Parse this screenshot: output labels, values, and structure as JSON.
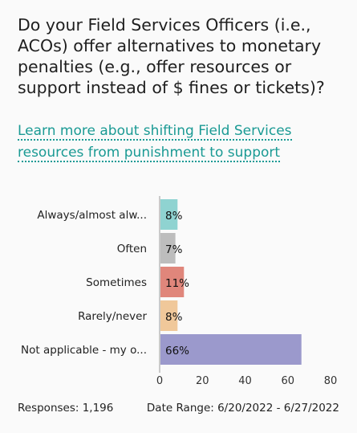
{
  "question": "Do your Field Services Officers (i.e., ACOs) offer alternatives to monetary penalties (e.g., offer resources or support instead of $ fines or tickets)?",
  "link_text": "Learn more about shifting Field Services resources from punishment to support",
  "footer": {
    "responses": "Responses: 1,196",
    "date_range": "Date Range: 6/20/2022 - 6/27/2022"
  },
  "chart_data": {
    "type": "bar",
    "orientation": "horizontal",
    "categories": [
      "Always/almost alw...",
      "Often",
      "Sometimes",
      "Rarely/never",
      "Not applicable - my o..."
    ],
    "values": [
      8,
      7,
      11,
      8,
      66
    ],
    "value_labels": [
      "8%",
      "7%",
      "11%",
      "8%",
      "66%"
    ],
    "colors": [
      "#8fd3d1",
      "#bdbdbd",
      "#e0867b",
      "#f0c89a",
      "#9b99cc"
    ],
    "xlim": [
      0,
      80
    ],
    "xticks": [
      0,
      20,
      40,
      60,
      80
    ],
    "grid": false,
    "legend": "none"
  }
}
